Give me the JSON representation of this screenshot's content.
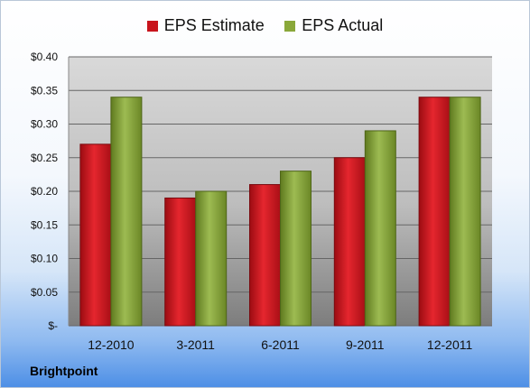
{
  "chart_data": {
    "type": "bar",
    "categories": [
      "12-2010",
      "3-2011",
      "6-2011",
      "9-2011",
      "12-2011"
    ],
    "series": [
      {
        "name": "EPS Estimate",
        "values": [
          0.27,
          0.19,
          0.21,
          0.25,
          0.34
        ]
      },
      {
        "name": "EPS Actual",
        "values": [
          0.34,
          0.2,
          0.23,
          0.29,
          0.34
        ]
      }
    ],
    "y_ticks": [
      "$-",
      "$0.05",
      "$0.10",
      "$0.15",
      "$0.20",
      "$0.25",
      "$0.30",
      "$0.35",
      "$0.40"
    ],
    "ylim": [
      0,
      0.4
    ],
    "title": "",
    "xlabel": "",
    "ylabel": "",
    "grid": true,
    "legend_position": "top",
    "colors": {
      "estimate": "#c8141c",
      "actual": "#8aa83a"
    }
  },
  "footer": {
    "company": "Brightpoint"
  }
}
